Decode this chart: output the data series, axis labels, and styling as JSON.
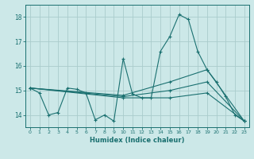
{
  "xlabel": "Humidex (Indice chaleur)",
  "bg_color": "#cce8e8",
  "grid_color": "#aacccc",
  "line_color": "#1a7070",
  "ylim": [
    13.5,
    18.5
  ],
  "xlim": [
    -0.5,
    23.5
  ],
  "yticks": [
    14,
    15,
    16,
    17,
    18
  ],
  "xticks": [
    0,
    1,
    2,
    3,
    4,
    5,
    6,
    7,
    8,
    9,
    10,
    11,
    12,
    13,
    14,
    15,
    16,
    17,
    18,
    19,
    20,
    21,
    22,
    23
  ],
  "series1_x": [
    0,
    1,
    2,
    3,
    4,
    5,
    6,
    7,
    8,
    9,
    10,
    11,
    12,
    13,
    14,
    15,
    16,
    17,
    18,
    19,
    20,
    21,
    22,
    23
  ],
  "series1_y": [
    15.1,
    14.9,
    14.0,
    14.1,
    15.1,
    15.05,
    14.9,
    13.8,
    14.0,
    13.75,
    16.3,
    14.85,
    14.7,
    14.7,
    16.6,
    17.2,
    18.1,
    17.9,
    16.6,
    15.85,
    15.35,
    14.75,
    14.0,
    13.75
  ],
  "series2_x": [
    0,
    10,
    15,
    19,
    23
  ],
  "series2_y": [
    15.1,
    14.8,
    15.35,
    15.85,
    13.75
  ],
  "series3_x": [
    0,
    10,
    15,
    19,
    23
  ],
  "series3_y": [
    15.1,
    14.75,
    15.0,
    15.35,
    13.75
  ],
  "series4_x": [
    0,
    10,
    15,
    19,
    23
  ],
  "series4_y": [
    15.1,
    14.7,
    14.7,
    14.9,
    13.75
  ]
}
